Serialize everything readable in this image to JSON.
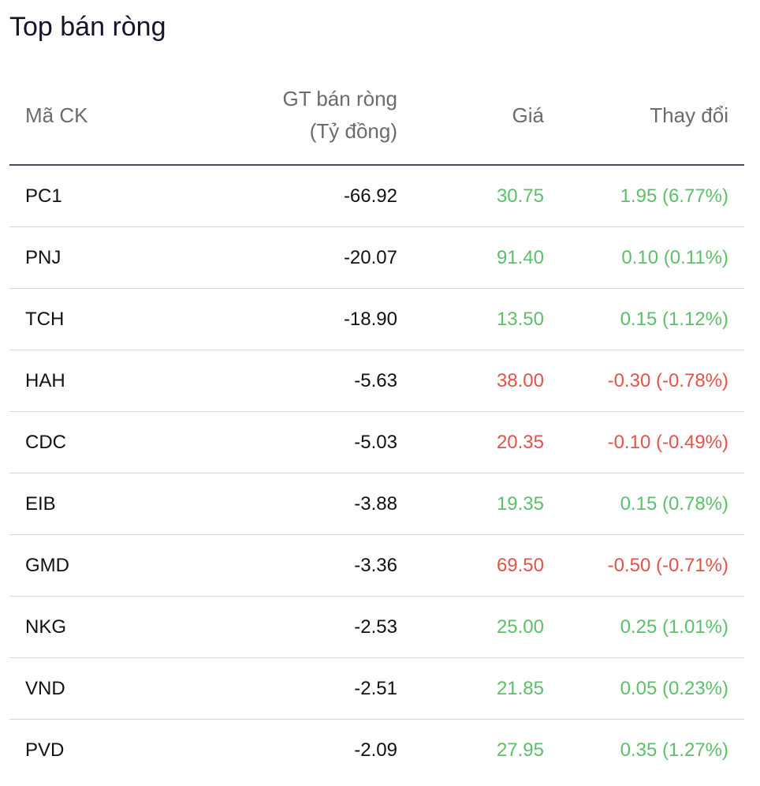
{
  "title": "Top bán ròng",
  "colors": {
    "up": "#5cbf6a",
    "down": "#e0544a"
  },
  "columns": {
    "code": "Mã CK",
    "value_line1": "GT bán ròng",
    "value_line2": "(Tỷ đồng)",
    "price": "Giá",
    "change": "Thay đổi"
  },
  "rows": [
    {
      "code": "PC1",
      "value": "-66.92",
      "price": "30.75",
      "change": "1.95 (6.77%)",
      "trend": "up"
    },
    {
      "code": "PNJ",
      "value": "-20.07",
      "price": "91.40",
      "change": "0.10 (0.11%)",
      "trend": "up"
    },
    {
      "code": "TCH",
      "value": "-18.90",
      "price": "13.50",
      "change": "0.15 (1.12%)",
      "trend": "up"
    },
    {
      "code": "HAH",
      "value": "-5.63",
      "price": "38.00",
      "change": "-0.30 (-0.78%)",
      "trend": "down"
    },
    {
      "code": "CDC",
      "value": "-5.03",
      "price": "20.35",
      "change": "-0.10 (-0.49%)",
      "trend": "down"
    },
    {
      "code": "EIB",
      "value": "-3.88",
      "price": "19.35",
      "change": "0.15 (0.78%)",
      "trend": "up"
    },
    {
      "code": "GMD",
      "value": "-3.36",
      "price": "69.50",
      "change": "-0.50 (-0.71%)",
      "trend": "down"
    },
    {
      "code": "NKG",
      "value": "-2.53",
      "price": "25.00",
      "change": "0.25 (1.01%)",
      "trend": "up"
    },
    {
      "code": "VND",
      "value": "-2.51",
      "price": "21.85",
      "change": "0.05 (0.23%)",
      "trend": "up"
    },
    {
      "code": "PVD",
      "value": "-2.09",
      "price": "27.95",
      "change": "0.35 (1.27%)",
      "trend": "up"
    }
  ]
}
